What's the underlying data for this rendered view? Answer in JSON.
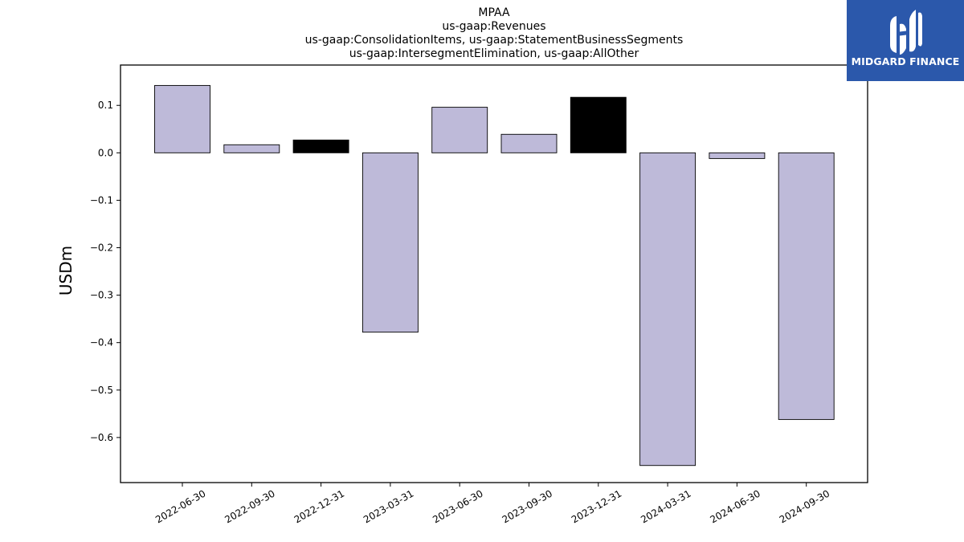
{
  "chart_data": {
    "type": "bar",
    "title_lines": [
      "MPAA",
      "us-gaap:Revenues",
      "us-gaap:ConsolidationItems, us-gaap:StatementBusinessSegments",
      "us-gaap:IntersegmentElimination, us-gaap:AllOther"
    ],
    "ylabel": "USDm",
    "categories": [
      "2022-06-30",
      "2022-09-30",
      "2022-12-31",
      "2023-03-31",
      "2023-06-30",
      "2023-09-30",
      "2023-12-31",
      "2024-03-31",
      "2024-06-30",
      "2024-09-30"
    ],
    "values": [
      0.142,
      0.017,
      0.027,
      -0.378,
      0.096,
      0.039,
      0.117,
      -0.659,
      -0.012,
      -0.562
    ],
    "highlight": [
      false,
      false,
      true,
      false,
      false,
      false,
      true,
      false,
      false,
      false
    ],
    "ylim": [
      -0.695,
      0.185
    ],
    "yticks": [
      0.1,
      0.0,
      -0.1,
      -0.2,
      -0.3,
      -0.4,
      -0.5,
      -0.6
    ],
    "ytick_labels": [
      "0.1",
      "0.0",
      "−0.1",
      "−0.2",
      "−0.3",
      "−0.4",
      "−0.5",
      "−0.6"
    ],
    "colors": {
      "bar": "#bebad9",
      "highlight": "#000000",
      "edge": "#000000"
    },
    "grid": false,
    "legend": "none"
  },
  "logo": {
    "text": "MIDGARD FINANCE",
    "background": "#2b58ab",
    "icon": "midgard-logo-icon"
  }
}
